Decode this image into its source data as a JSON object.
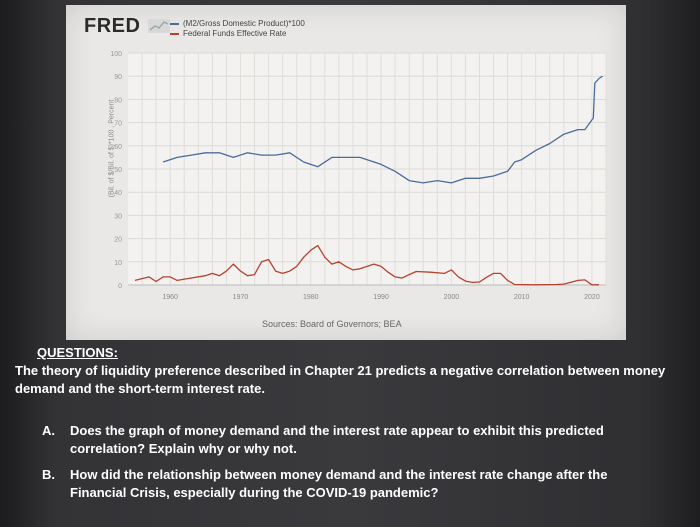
{
  "header": {
    "brand": "FRED",
    "legend": [
      {
        "label": "(M2/Gross Domestic Product)*100",
        "color": "#4a6c9a"
      },
      {
        "label": "Federal Funds Effective Rate",
        "color": "#b4432f"
      }
    ]
  },
  "chart_data": {
    "type": "line",
    "xlabel": "",
    "ylabel": "(Bil. of $/Bil. of $)*100 , Percent",
    "xlim": [
      1954,
      2022
    ],
    "ylim": [
      0,
      100
    ],
    "x_ticks": [
      "1960",
      "1970",
      "1980",
      "1990",
      "2000",
      "2010",
      "2020"
    ],
    "y_ticks": [
      "0",
      "10",
      "20",
      "30",
      "40",
      "50",
      "60",
      "70",
      "80",
      "90",
      "100"
    ],
    "grid": true,
    "legend_position": "top-left",
    "source": "Sources: Board of Governors; BEA",
    "series": [
      {
        "name": "(M2/Gross Domestic Product)*100",
        "color": "#4a6c9a",
        "x": [
          1959,
          1961,
          1963,
          1965,
          1967,
          1969,
          1971,
          1973,
          1975,
          1977,
          1979,
          1981,
          1983,
          1985,
          1987,
          1989,
          1990,
          1992,
          1994,
          1996,
          1998,
          2000,
          2002,
          2004,
          2006,
          2008,
          2009,
          2010,
          2012,
          2014,
          2016,
          2018,
          2019,
          2020.2,
          2020.4,
          2021,
          2021.5
        ],
        "values": [
          53,
          55,
          56,
          57,
          57,
          55,
          57,
          56,
          56,
          57,
          53,
          51,
          55,
          55,
          55,
          53,
          52,
          49,
          45,
          44,
          45,
          44,
          46,
          46,
          47,
          49,
          53,
          54,
          58,
          61,
          65,
          67,
          67,
          72,
          87,
          89,
          90
        ]
      },
      {
        "name": "Federal Funds Effective Rate",
        "color": "#b4432f",
        "x": [
          1955,
          1957,
          1958,
          1959,
          1960,
          1961,
          1963,
          1965,
          1966,
          1967,
          1968,
          1969,
          1970,
          1971,
          1972,
          1973,
          1974,
          1975,
          1976,
          1977,
          1978,
          1979,
          1980,
          1981,
          1982,
          1983,
          1984,
          1985,
          1986,
          1987,
          1988,
          1989,
          1990,
          1991,
          1992,
          1993,
          1994,
          1995,
          1997,
          1999,
          2000,
          2001,
          2002,
          2003,
          2004,
          2005,
          2006,
          2007,
          2008,
          2009,
          2012,
          2015,
          2016,
          2017,
          2018,
          2019,
          2020,
          2021
        ],
        "values": [
          2,
          3.5,
          1.5,
          3.5,
          3.5,
          2,
          3,
          4,
          5,
          4,
          6,
          9,
          6,
          4,
          4.5,
          10,
          11,
          6,
          5,
          6,
          8,
          12,
          15,
          17,
          12,
          9,
          10,
          8,
          6.5,
          7,
          8,
          9,
          8,
          5.5,
          3.5,
          3,
          4.5,
          5.8,
          5.5,
          5,
          6.5,
          3.5,
          1.7,
          1.1,
          1.3,
          3.3,
          5,
          5,
          2,
          0.2,
          0.1,
          0.2,
          0.4,
          1.2,
          2,
          2.2,
          0.1,
          0.1
        ]
      }
    ]
  },
  "questions": {
    "heading": "QUESTIONS:",
    "intro": "The theory of liquidity preference described in Chapter 21 predicts a negative correlation between money demand and the short-term interest rate.",
    "items": [
      {
        "letter": "A.",
        "text": "Does the graph of money demand and the interest rate appear to exhibit this predicted correlation? Explain why or why not."
      },
      {
        "letter": "B.",
        "text": "How did the relationship between money demand and the interest rate change after the Financial Crisis, especially during the COVID-19 pandemic?"
      }
    ]
  }
}
